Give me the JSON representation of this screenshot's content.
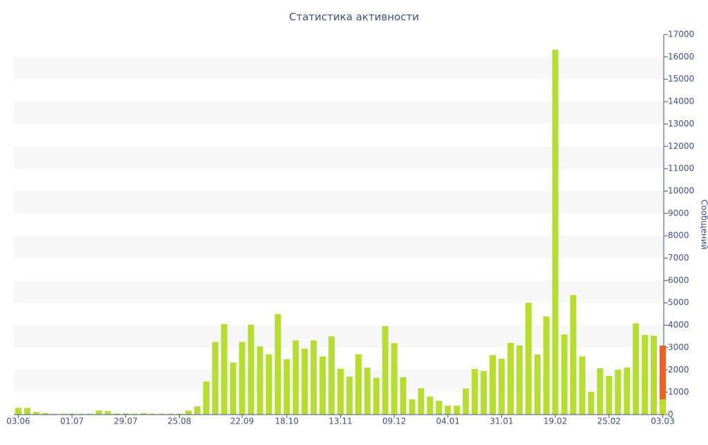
{
  "chart_data": {
    "type": "bar",
    "title": "Статистика активности",
    "y_label": "Сообщений",
    "categories": [
      "03.06",
      null,
      null,
      null,
      null,
      null,
      "01.07",
      null,
      null,
      null,
      null,
      null,
      "29.07",
      null,
      null,
      null,
      null,
      null,
      "25.08",
      null,
      null,
      null,
      null,
      null,
      null,
      "22.09",
      null,
      null,
      null,
      null,
      "18.10",
      null,
      null,
      null,
      null,
      null,
      "13.11",
      null,
      null,
      null,
      null,
      null,
      "09.12",
      null,
      null,
      null,
      null,
      null,
      "04.01",
      null,
      null,
      null,
      null,
      null,
      "31.01",
      null,
      null,
      null,
      null,
      null,
      "19.02",
      null,
      null,
      null,
      null,
      null,
      "25.02",
      null,
      null,
      null,
      null,
      null,
      "03.03"
    ],
    "series": [
      {
        "color": "#b6de2f",
        "values": [
          300,
          300,
          120,
          70,
          40,
          40,
          40,
          40,
          40,
          180,
          160,
          50,
          50,
          40,
          70,
          40,
          40,
          40,
          40,
          180,
          370,
          1480,
          3250,
          4050,
          2330,
          3250,
          4020,
          3050,
          2700,
          4500,
          2480,
          3320,
          2950,
          3320,
          2600,
          3500,
          2050,
          1700,
          2700,
          2100,
          1650,
          3960,
          3200,
          1670,
          680,
          1180,
          810,
          620,
          400,
          400,
          1170,
          2040,
          1950,
          2660,
          2500,
          3210,
          3090,
          5000,
          2690,
          4390,
          16320,
          3590,
          5350,
          2600,
          1020,
          2070,
          1730,
          2010,
          2100,
          4080,
          3560,
          3530,
          680
        ]
      },
      {
        "color": "#e8642a",
        "values": [
          null,
          null,
          null,
          null,
          null,
          null,
          null,
          null,
          null,
          null,
          null,
          null,
          null,
          null,
          null,
          null,
          null,
          null,
          null,
          null,
          null,
          null,
          null,
          null,
          null,
          null,
          null,
          null,
          null,
          null,
          null,
          null,
          null,
          null,
          null,
          null,
          null,
          null,
          null,
          null,
          null,
          null,
          null,
          null,
          null,
          null,
          null,
          null,
          null,
          null,
          null,
          null,
          null,
          null,
          null,
          null,
          null,
          null,
          null,
          null,
          null,
          null,
          null,
          null,
          null,
          null,
          null,
          null,
          null,
          null,
          null,
          null,
          2410
        ]
      }
    ],
    "stacked": true,
    "ylim": [
      0,
      17000
    ],
    "yticks": [
      0,
      1000,
      2000,
      3000,
      4000,
      5000,
      6000,
      7000,
      8000,
      9000,
      10000,
      11000,
      12000,
      13000,
      14000,
      15000,
      16000,
      17000
    ],
    "grid_bands": true
  }
}
